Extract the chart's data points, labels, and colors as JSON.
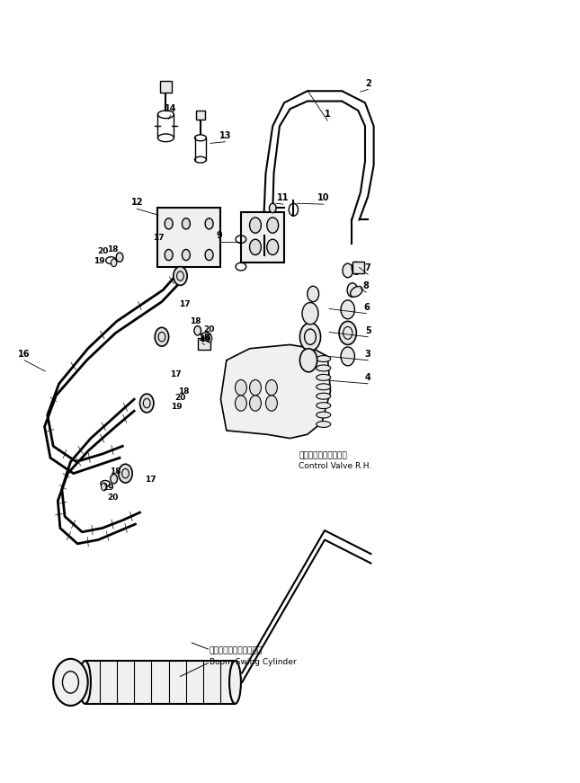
{
  "bg_color": "#ffffff",
  "line_color": "#000000",
  "fig_width": 6.45,
  "fig_height": 8.71,
  "dpi": 100,
  "control_valve_label_jp": "コントロールバルブ右",
  "control_valve_label_en": "Control Valve R.H.",
  "boom_swing_label_jp": "ブームスイングシリンダ",
  "boom_swing_label_en": "Boom Swing Cylinder"
}
